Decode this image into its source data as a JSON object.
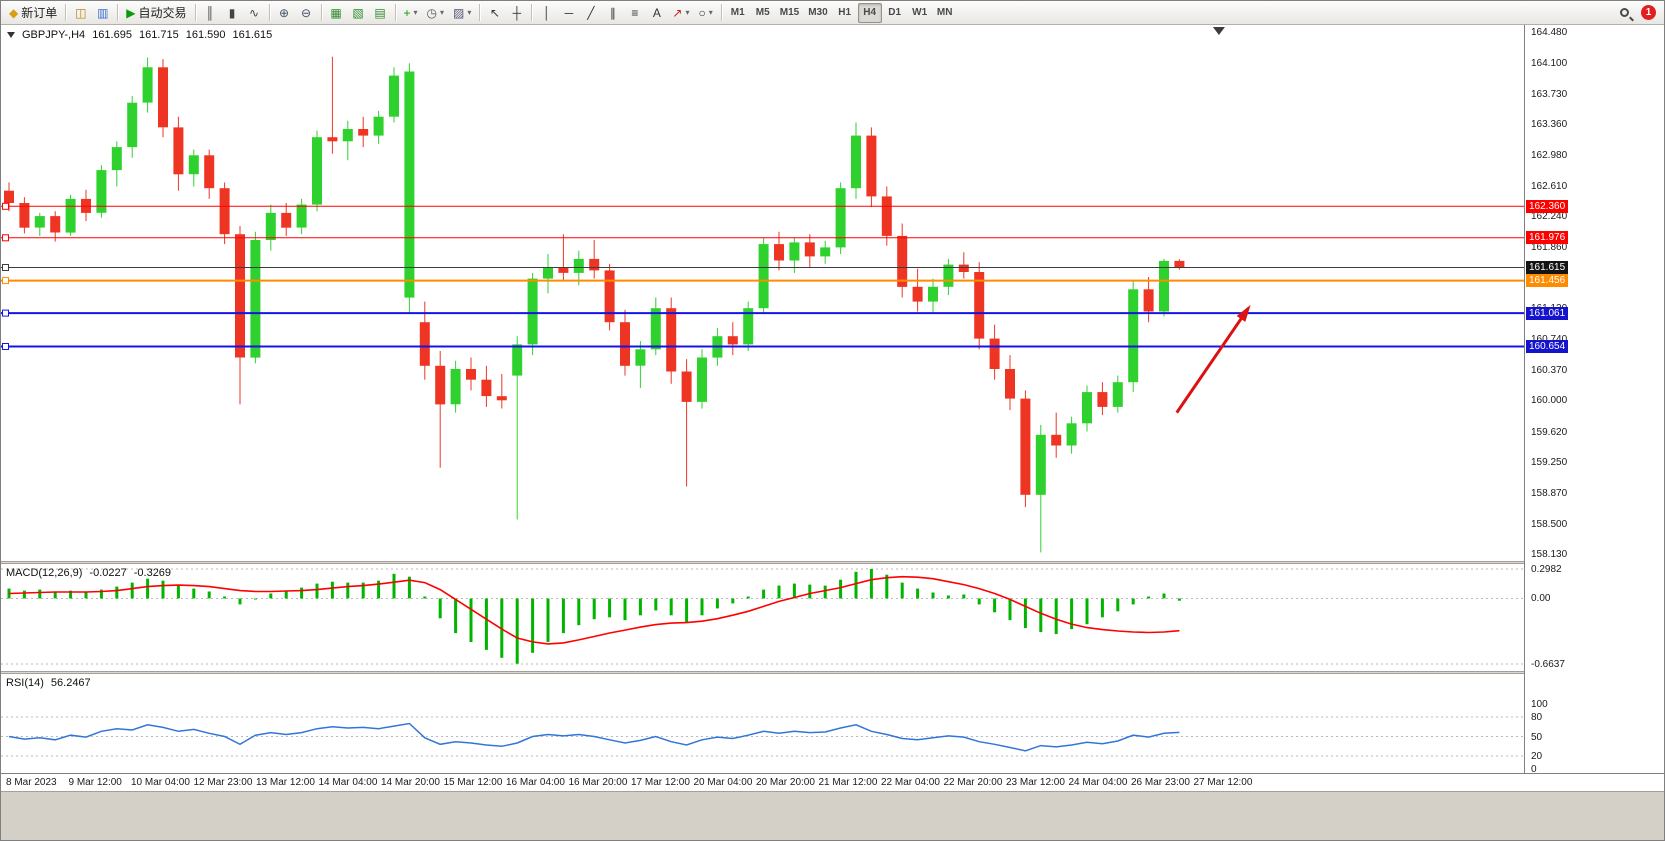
{
  "window": {
    "notification_count": "1"
  },
  "toolbar": {
    "items": [
      {
        "name": "new-order-button",
        "glyph": "◆",
        "color": "#d4a017",
        "label": "新订单"
      },
      {
        "sep": true
      },
      {
        "name": "charts-grid-button",
        "glyph": "◫",
        "color": "#b8860b"
      },
      {
        "name": "profiles-button",
        "glyph": "▥",
        "color": "#3a6ecf"
      },
      {
        "sep": true
      },
      {
        "name": "auto-trading-button",
        "glyph": "▶",
        "color": "#0a9a0a",
        "label": "自动交易"
      },
      {
        "sep": true
      },
      {
        "name": "chart-bars-button",
        "glyph": "║",
        "color": "#444444"
      },
      {
        "name": "chart-candles-button",
        "glyph": "▮",
        "color": "#444444"
      },
      {
        "name": "chart-line-button",
        "glyph": "∿",
        "color": "#444444"
      },
      {
        "sep": true
      },
      {
        "name": "zoom-in-button",
        "glyph": "⊕",
        "color": "#44506a"
      },
      {
        "name": "zoom-out-button",
        "glyph": "⊖",
        "color": "#44506a"
      },
      {
        "sep": true
      },
      {
        "name": "tile-windows-button",
        "glyph": "▦",
        "color": "#2e8b2e"
      },
      {
        "name": "cascade-windows-button",
        "glyph": "▧",
        "color": "#2e8b2e"
      },
      {
        "name": "arrange-windows-button",
        "glyph": "▤",
        "color": "#2e8b2e"
      },
      {
        "sep": true
      },
      {
        "name": "indicators-button",
        "glyph": "+",
        "color": "#0a9a0a",
        "drop": true
      },
      {
        "name": "periods-button",
        "glyph": "◷",
        "color": "#555555",
        "drop": true
      },
      {
        "name": "templates-button",
        "glyph": "▨",
        "color": "#555577",
        "drop": true
      },
      {
        "sep": true
      },
      {
        "name": "cursor-button",
        "glyph": "↖",
        "color": "#333333"
      },
      {
        "name": "crosshair-button",
        "glyph": "┼",
        "color": "#333333"
      },
      {
        "sep": true
      },
      {
        "name": "vertical-line-button",
        "glyph": "│",
        "color": "#333333"
      },
      {
        "name": "horizontal-line-button",
        "glyph": "─",
        "color": "#333333"
      },
      {
        "name": "trendline-button",
        "glyph": "╱",
        "color": "#333333"
      },
      {
        "name": "channel-button",
        "glyph": "∥",
        "color": "#333333"
      },
      {
        "name": "fibonacci-button",
        "glyph": "≡",
        "color": "#333333"
      },
      {
        "name": "text-button",
        "glyph": "A",
        "color": "#333333"
      },
      {
        "name": "arrows-button",
        "glyph": "↗",
        "color": "#bb2222",
        "drop": true
      },
      {
        "name": "shapes-button",
        "glyph": "○",
        "color": "#333333",
        "drop": true
      },
      {
        "sep": true
      }
    ],
    "timeframes": [
      "M1",
      "M5",
      "M15",
      "M30",
      "H1",
      "H4",
      "D1",
      "W1",
      "MN"
    ],
    "active_timeframe": "H4"
  },
  "chart": {
    "symbol_label": "GBPJPY-,H4",
    "open": "161.695",
    "high": "161.715",
    "low": "161.590",
    "close": "161.615"
  },
  "chart_data": {
    "type": "candlestick",
    "symbol": "GBPJPY-",
    "timeframe": "H4",
    "colors": {
      "up": "#2fd12f",
      "down": "#ee3524",
      "grid": "#b9b9b9"
    },
    "price_axis": {
      "ylim": [
        158.13,
        164.48
      ],
      "ticks": [
        "164.480",
        "164.100",
        "163.730",
        "163.360",
        "162.980",
        "162.610",
        "162.240",
        "161.860",
        "161.490",
        "161.120",
        "160.740",
        "160.370",
        "160.000",
        "159.620",
        "159.250",
        "158.870",
        "158.500",
        "158.130"
      ]
    },
    "levels": [
      {
        "price": 162.36,
        "label": "162.360",
        "color": "#ff0000",
        "badge": "#ff0000",
        "line_width": 1
      },
      {
        "price": 161.976,
        "label": "161.976",
        "color": "#ff0000",
        "badge": "#ff0000",
        "line_width": 1
      },
      {
        "price": 161.615,
        "label": "161.615",
        "color": "#3c3c3c",
        "badge": "#141414",
        "line_width": 1
      },
      {
        "price": 161.456,
        "label": "161.456",
        "color": "#ff8c00",
        "badge": "#ff8c00",
        "line_width": 2
      },
      {
        "price": 161.061,
        "label": "161.061",
        "color": "#1414e6",
        "badge": "#1414cc",
        "line_width": 2
      },
      {
        "price": 160.654,
        "label": "160.654",
        "color": "#1414e6",
        "badge": "#1414cc",
        "line_width": 2
      }
    ],
    "candles": [
      [
        162.55,
        162.65,
        162.3,
        162.4
      ],
      [
        162.4,
        162.47,
        162.03,
        162.1
      ],
      [
        162.1,
        162.28,
        162.0,
        162.24
      ],
      [
        162.24,
        162.3,
        161.93,
        162.04
      ],
      [
        162.04,
        162.5,
        162.0,
        162.45
      ],
      [
        162.45,
        162.56,
        162.18,
        162.28
      ],
      [
        162.28,
        162.86,
        162.22,
        162.8
      ],
      [
        162.8,
        163.15,
        162.6,
        163.08
      ],
      [
        163.08,
        163.7,
        162.95,
        163.62
      ],
      [
        163.62,
        164.17,
        163.5,
        164.05
      ],
      [
        164.05,
        164.15,
        163.2,
        163.32
      ],
      [
        163.32,
        163.45,
        162.55,
        162.75
      ],
      [
        162.75,
        163.05,
        162.6,
        162.98
      ],
      [
        162.98,
        163.05,
        162.45,
        162.58
      ],
      [
        162.58,
        162.65,
        161.9,
        162.02
      ],
      [
        162.02,
        162.12,
        159.95,
        160.52
      ],
      [
        160.52,
        162.05,
        160.45,
        161.95
      ],
      [
        161.95,
        162.38,
        161.82,
        162.28
      ],
      [
        162.28,
        162.4,
        162.0,
        162.1
      ],
      [
        162.1,
        162.45,
        162.02,
        162.38
      ],
      [
        162.38,
        163.28,
        162.3,
        163.2
      ],
      [
        163.2,
        164.18,
        163.0,
        163.15
      ],
      [
        163.15,
        163.4,
        162.92,
        163.3
      ],
      [
        163.3,
        163.45,
        163.08,
        163.22
      ],
      [
        163.22,
        163.52,
        163.12,
        163.45
      ],
      [
        163.45,
        164.05,
        163.38,
        163.95
      ],
      [
        161.25,
        164.1,
        161.05,
        164.0
      ],
      [
        160.95,
        161.2,
        160.25,
        160.42
      ],
      [
        160.42,
        160.6,
        159.18,
        159.95
      ],
      [
        159.95,
        160.48,
        159.85,
        160.38
      ],
      [
        160.38,
        160.52,
        160.12,
        160.25
      ],
      [
        160.25,
        160.42,
        159.92,
        160.05
      ],
      [
        160.05,
        160.32,
        159.9,
        160.0
      ],
      [
        160.3,
        160.78,
        158.55,
        160.68
      ],
      [
        160.68,
        161.55,
        160.55,
        161.48
      ],
      [
        161.48,
        161.78,
        161.3,
        161.62
      ],
      [
        161.62,
        162.02,
        161.45,
        161.55
      ],
      [
        161.55,
        161.82,
        161.4,
        161.72
      ],
      [
        161.72,
        161.95,
        161.48,
        161.58
      ],
      [
        161.58,
        161.66,
        160.85,
        160.95
      ],
      [
        160.95,
        161.1,
        160.3,
        160.42
      ],
      [
        160.42,
        160.72,
        160.15,
        160.62
      ],
      [
        160.62,
        161.25,
        160.55,
        161.12
      ],
      [
        161.12,
        161.25,
        160.2,
        160.35
      ],
      [
        160.35,
        160.5,
        158.95,
        159.98
      ],
      [
        159.98,
        160.62,
        159.9,
        160.52
      ],
      [
        160.52,
        160.88,
        160.42,
        160.78
      ],
      [
        160.78,
        160.95,
        160.55,
        160.68
      ],
      [
        160.68,
        161.2,
        160.6,
        161.12
      ],
      [
        161.12,
        161.98,
        161.05,
        161.9
      ],
      [
        161.9,
        162.05,
        161.58,
        161.7
      ],
      [
        161.7,
        161.98,
        161.55,
        161.92
      ],
      [
        161.92,
        162.02,
        161.62,
        161.75
      ],
      [
        161.75,
        161.94,
        161.66,
        161.86
      ],
      [
        161.86,
        162.65,
        161.78,
        162.58
      ],
      [
        162.58,
        163.38,
        162.45,
        163.22
      ],
      [
        163.22,
        163.32,
        162.35,
        162.48
      ],
      [
        162.48,
        162.6,
        161.88,
        162.0
      ],
      [
        162.0,
        162.15,
        161.25,
        161.38
      ],
      [
        161.38,
        161.6,
        161.08,
        161.2
      ],
      [
        161.2,
        161.48,
        161.05,
        161.38
      ],
      [
        161.38,
        161.72,
        161.28,
        161.65
      ],
      [
        161.65,
        161.8,
        161.48,
        161.56
      ],
      [
        161.56,
        161.68,
        160.62,
        160.75
      ],
      [
        160.75,
        160.92,
        160.25,
        160.38
      ],
      [
        160.38,
        160.55,
        159.88,
        160.02
      ],
      [
        160.02,
        160.12,
        158.7,
        158.85
      ],
      [
        158.85,
        159.7,
        158.15,
        159.58
      ],
      [
        159.58,
        159.85,
        159.3,
        159.45
      ],
      [
        159.45,
        159.8,
        159.35,
        159.72
      ],
      [
        159.72,
        160.18,
        159.62,
        160.1
      ],
      [
        160.1,
        160.22,
        159.82,
        159.92
      ],
      [
        159.92,
        160.3,
        159.85,
        160.22
      ],
      [
        160.22,
        161.45,
        160.1,
        161.35
      ],
      [
        161.35,
        161.5,
        160.95,
        161.08
      ],
      [
        161.08,
        161.72,
        161.02,
        161.695
      ],
      [
        161.695,
        161.715,
        161.59,
        161.615
      ]
    ],
    "time_labels": [
      "8 Mar 2023",
      "9 Mar 12:00",
      "10 Mar 04:00",
      "12 Mar 23:00",
      "13 Mar 12:00",
      "14 Mar 04:00",
      "14 Mar 20:00",
      "15 Mar 12:00",
      "16 Mar 04:00",
      "16 Mar 20:00",
      "17 Mar 12:00",
      "20 Mar 04:00",
      "20 Mar 20:00",
      "21 Mar 12:00",
      "22 Mar 04:00",
      "22 Mar 20:00",
      "23 Mar 12:00",
      "24 Mar 04:00",
      "26 Mar 23:00",
      "27 Mar 12:00"
    ],
    "shift_marker_x_frac": 0.7997,
    "arrow": {
      "x1_frac": 0.772,
      "y1_price": 159.85,
      "x2_frac": 0.819,
      "y2_price": 161.12,
      "color": "#dd1111"
    },
    "macd": {
      "label": "MACD(12,26,9)",
      "value_main": "-0.0227",
      "value_signal": "-0.3269",
      "ylim": [
        -0.6637,
        0.2982
      ],
      "tick_labels": [
        "0.2982",
        "0.00",
        "-0.6637"
      ],
      "tick_values": [
        0.2982,
        0,
        -0.6637
      ],
      "colors": {
        "hist": "#00b400",
        "signal": "#ff0000"
      },
      "hist": [
        0.1,
        0.08,
        0.09,
        0.07,
        0.08,
        0.06,
        0.09,
        0.12,
        0.16,
        0.2,
        0.18,
        0.13,
        0.1,
        0.07,
        0.02,
        -0.06,
        0.0,
        0.05,
        0.08,
        0.11,
        0.15,
        0.17,
        0.16,
        0.16,
        0.18,
        0.25,
        0.22,
        0.02,
        -0.2,
        -0.35,
        -0.44,
        -0.52,
        -0.6,
        -0.66,
        -0.55,
        -0.44,
        -0.35,
        -0.27,
        -0.21,
        -0.19,
        -0.22,
        -0.17,
        -0.12,
        -0.17,
        -0.24,
        -0.17,
        -0.1,
        -0.05,
        0.02,
        0.09,
        0.13,
        0.15,
        0.14,
        0.13,
        0.19,
        0.27,
        0.2982,
        0.24,
        0.16,
        0.1,
        0.06,
        0.03,
        0.04,
        -0.06,
        -0.14,
        -0.22,
        -0.3,
        -0.34,
        -0.36,
        -0.31,
        -0.26,
        -0.19,
        -0.13,
        -0.06,
        0.02,
        0.05,
        -0.0227
      ],
      "signal": [
        0.05,
        0.055,
        0.06,
        0.065,
        0.065,
        0.065,
        0.07,
        0.08,
        0.1,
        0.12,
        0.13,
        0.135,
        0.13,
        0.12,
        0.1,
        0.08,
        0.07,
        0.07,
        0.075,
        0.08,
        0.09,
        0.105,
        0.12,
        0.13,
        0.145,
        0.165,
        0.185,
        0.16,
        0.09,
        -0.01,
        -0.11,
        -0.21,
        -0.31,
        -0.4,
        -0.44,
        -0.46,
        -0.45,
        -0.42,
        -0.385,
        -0.35,
        -0.32,
        -0.29,
        -0.265,
        -0.25,
        -0.245,
        -0.23,
        -0.205,
        -0.17,
        -0.13,
        -0.08,
        -0.03,
        0.01,
        0.05,
        0.08,
        0.11,
        0.15,
        0.19,
        0.21,
        0.22,
        0.215,
        0.2,
        0.17,
        0.14,
        0.1,
        0.05,
        -0.01,
        -0.08,
        -0.15,
        -0.21,
        -0.26,
        -0.295,
        -0.315,
        -0.33,
        -0.34,
        -0.345,
        -0.34,
        -0.3269
      ]
    },
    "rsi": {
      "label": "RSI(14)",
      "value": "56.2467",
      "ylim": [
        0,
        100
      ],
      "tick_labels": [
        "100",
        "80",
        "50",
        "20",
        "0"
      ],
      "tick_values": [
        100,
        80,
        50,
        20,
        0
      ],
      "dashed_levels": [
        80,
        50,
        20
      ],
      "color": "#3275d9",
      "values": [
        50,
        46,
        48,
        45,
        52,
        49,
        58,
        62,
        60,
        68,
        64,
        58,
        61,
        55,
        50,
        38,
        52,
        56,
        53,
        56,
        62,
        65,
        63,
        64,
        62,
        66,
        70,
        48,
        38,
        42,
        40,
        37,
        35,
        40,
        50,
        53,
        51,
        53,
        50,
        45,
        40,
        44,
        50,
        42,
        37,
        45,
        49,
        47,
        52,
        58,
        55,
        58,
        56,
        57,
        63,
        68,
        58,
        53,
        47,
        45,
        48,
        51,
        49,
        42,
        38,
        33,
        28,
        36,
        34,
        37,
        41,
        39,
        43,
        52,
        49,
        55,
        56.2467
      ]
    }
  }
}
